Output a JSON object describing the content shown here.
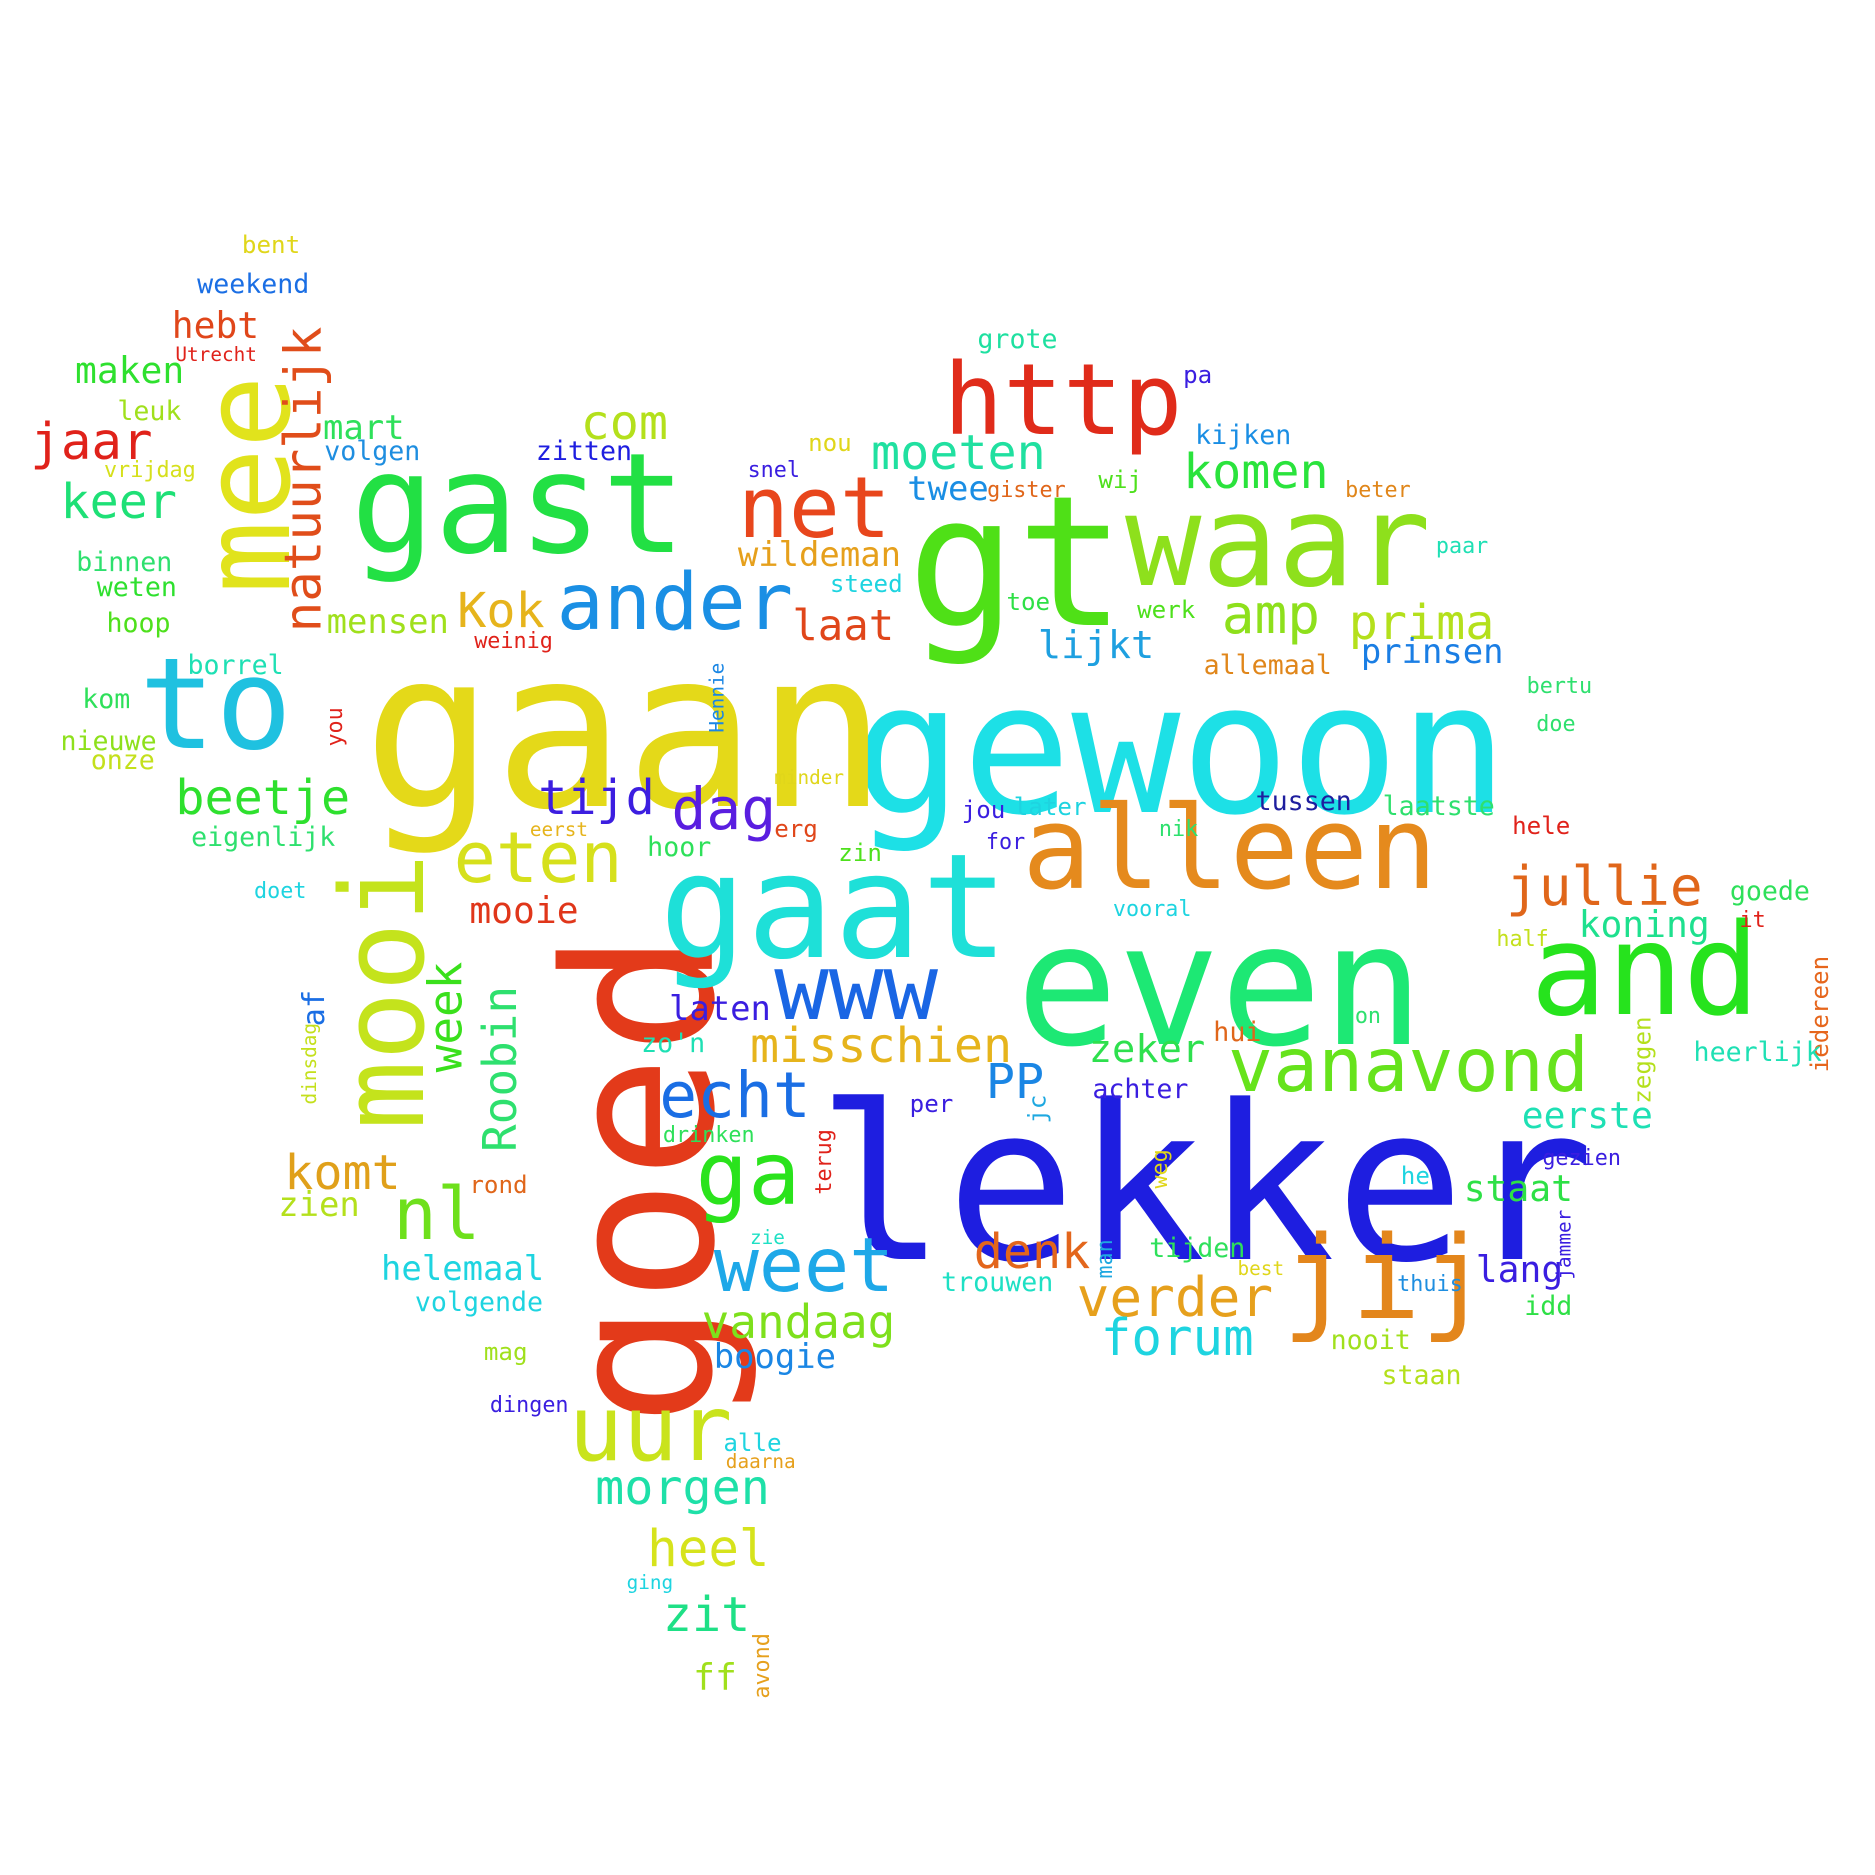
{
  "words": [
    {
      "text": "lekker",
      "color": "#1e1ee0"
    },
    {
      "text": "gewoon",
      "color": "#1de0e6"
    },
    {
      "text": "gaan",
      "color": "#e4d919"
    },
    {
      "text": "gt",
      "color": "#4fe017"
    },
    {
      "text": "goed",
      "color": "#e33a1a"
    },
    {
      "text": "even",
      "color": "#1de874"
    },
    {
      "text": "gaat",
      "color": "#1ee0d8"
    },
    {
      "text": "waar",
      "color": "#8ee01c"
    },
    {
      "text": "gast",
      "color": "#22e044"
    },
    {
      "text": "alleen",
      "color": "#e58a1d"
    },
    {
      "text": "and",
      "color": "#26e31d"
    },
    {
      "text": "to",
      "color": "#1fc1e0"
    },
    {
      "text": "mee",
      "color": "#e1e31c"
    },
    {
      "text": "mooi",
      "color": "#c4e31c"
    },
    {
      "text": "http",
      "color": "#e02b1a"
    },
    {
      "text": "www",
      "color": "#1a66e4"
    },
    {
      "text": "jij",
      "color": "#e3861c"
    },
    {
      "text": "uur",
      "color": "#c9e31c"
    },
    {
      "text": "ander",
      "color": "#1a8fe4"
    },
    {
      "text": "net",
      "color": "#e8461c"
    },
    {
      "text": "vanavond",
      "color": "#66e31c"
    },
    {
      "text": "weet",
      "color": "#1ea8e8"
    },
    {
      "text": "eten",
      "color": "#d6e01c"
    },
    {
      "text": "ga",
      "color": "#2ae31c"
    },
    {
      "text": "natuurlijk",
      "color": "#e04d1a"
    },
    {
      "text": "nl",
      "color": "#6ee01c"
    },
    {
      "text": "jullie",
      "color": "#e0661a"
    },
    {
      "text": "echt",
      "color": "#1a6ee4"
    },
    {
      "text": "verder",
      "color": "#e6a01c"
    },
    {
      "text": "misschien",
      "color": "#e6b41c"
    },
    {
      "text": "forum",
      "color": "#1ed4e0"
    },
    {
      "text": "Roobin",
      "color": "#2ee06e"
    },
    {
      "text": "dag",
      "color": "#5a1ee0"
    },
    {
      "text": "moeten",
      "color": "#20e0a0"
    },
    {
      "text": "beetje",
      "color": "#2ee02e"
    },
    {
      "text": "komen",
      "color": "#2ae33c"
    },
    {
      "text": "amp",
      "color": "#8ee01c"
    },
    {
      "text": "morgen",
      "color": "#1ee0a8"
    },
    {
      "text": "prima",
      "color": "#b4e01c"
    },
    {
      "text": "tijd",
      "color": "#3c1ee0"
    },
    {
      "text": "denk",
      "color": "#e3661c"
    },
    {
      "text": "jaar",
      "color": "#e0221a"
    },
    {
      "text": "week",
      "color": "#3ae01c"
    },
    {
      "text": "vandaag",
      "color": "#7ee01c"
    },
    {
      "text": "com",
      "color": "#b4e01c"
    },
    {
      "text": "keer",
      "color": "#1ee076"
    },
    {
      "text": "Kok",
      "color": "#e6b41c"
    },
    {
      "text": "komt",
      "color": "#e0a01a"
    },
    {
      "text": "heel",
      "color": "#d6e31c"
    },
    {
      "text": "zit",
      "color": "#1ee086"
    },
    {
      "text": "laat",
      "color": "#e0461a"
    },
    {
      "text": "PP",
      "color": "#1a86e4"
    },
    {
      "text": "koning",
      "color": "#1ee08e"
    },
    {
      "text": "wildeman",
      "color": "#e6a01c"
    },
    {
      "text": "lijkt",
      "color": "#1ea0e0"
    },
    {
      "text": "mooie",
      "color": "#e0361a"
    },
    {
      "text": "zeker",
      "color": "#2ee04e"
    },
    {
      "text": "eerste",
      "color": "#1ee0b4"
    },
    {
      "text": "maken",
      "color": "#2ee02e"
    },
    {
      "text": "helemaal",
      "color": "#1ed4e0"
    },
    {
      "text": "boogie",
      "color": "#1a86e4"
    },
    {
      "text": "mensen",
      "color": "#a0e01c"
    },
    {
      "text": "prinsen",
      "color": "#1a7ee4"
    },
    {
      "text": "laten",
      "color": "#3a1ee0"
    },
    {
      "text": "twee",
      "color": "#1a8ee4"
    },
    {
      "text": "staat",
      "color": "#2ee046"
    },
    {
      "text": "hebt",
      "color": "#e0461a"
    },
    {
      "text": "mart",
      "color": "#2ee05a"
    },
    {
      "text": "lang",
      "color": "#3a1ee0"
    },
    {
      "text": "zien",
      "color": "#b4e01c"
    },
    {
      "text": "ff",
      "color": "#a0e01c"
    },
    {
      "text": "af",
      "color": "#1a6ee4"
    },
    {
      "text": "tussen",
      "color": "#1e1e9e"
    },
    {
      "text": "zitten",
      "color": "#1e1ee0"
    },
    {
      "text": "volgen",
      "color": "#1e8ee0"
    },
    {
      "text": "kijken",
      "color": "#1a8ee4"
    },
    {
      "text": "grote",
      "color": "#1ee0a0"
    },
    {
      "text": "hui",
      "color": "#e0661a"
    },
    {
      "text": "iedereen",
      "color": "#e6661c"
    },
    {
      "text": "trouwen",
      "color": "#1ee0c4"
    },
    {
      "text": "zeggen",
      "color": "#b4e01c"
    },
    {
      "text": "tijden",
      "color": "#2ee05a"
    },
    {
      "text": "nooit",
      "color": "#a0e01c"
    },
    {
      "text": "eigenlijk",
      "color": "#2ee06e"
    },
    {
      "text": "volgende",
      "color": "#1ed4e0"
    },
    {
      "text": "drinken",
      "color": "#2ee05a"
    },
    {
      "text": "weekend",
      "color": "#1a6ee4"
    },
    {
      "text": "heerlijk",
      "color": "#1ee0b4"
    },
    {
      "text": "goede",
      "color": "#2ee05a"
    },
    {
      "text": "allemaal",
      "color": "#e0861a"
    },
    {
      "text": "laatste",
      "color": "#2ee06e"
    },
    {
      "text": "idd",
      "color": "#2ee046"
    },
    {
      "text": "staan",
      "color": "#b4e01c"
    },
    {
      "text": "achter",
      "color": "#3a1ee0"
    },
    {
      "text": "weten",
      "color": "#2ee02e"
    },
    {
      "text": "binnen",
      "color": "#2ee06e"
    },
    {
      "text": "borrel",
      "color": "#1ee0b4"
    },
    {
      "text": "hoop",
      "color": "#4ee01c"
    },
    {
      "text": "nieuwe",
      "color": "#8ee01c"
    },
    {
      "text": "onze",
      "color": "#c4e01c"
    },
    {
      "text": "kom",
      "color": "#2ee05a"
    },
    {
      "text": "leuk",
      "color": "#a0e01c"
    },
    {
      "text": "vrijdag",
      "color": "#d6e01c"
    },
    {
      "text": "Utrecht",
      "color": "#e0221a"
    },
    {
      "text": "bent",
      "color": "#e0d61a"
    },
    {
      "text": "you",
      "color": "#e0221a"
    },
    {
      "text": "dinsdag",
      "color": "#c4e01c"
    },
    {
      "text": "doet",
      "color": "#1ed4e0"
    },
    {
      "text": "hoor",
      "color": "#2ee05a"
    },
    {
      "text": "eerst",
      "color": "#e6b41c"
    },
    {
      "text": "erg",
      "color": "#e0461a"
    },
    {
      "text": "zin",
      "color": "#4ee01c"
    },
    {
      "text": "zo'n",
      "color": "#1ee0b4"
    },
    {
      "text": "minder",
      "color": "#e0d61a"
    },
    {
      "text": "Hennie",
      "color": "#1a86e4"
    },
    {
      "text": "weinig",
      "color": "#e0221a"
    },
    {
      "text": "snel",
      "color": "#3a1ee0"
    },
    {
      "text": "nou",
      "color": "#e0d61a"
    },
    {
      "text": "steed",
      "color": "#1ed4e0"
    },
    {
      "text": "toe",
      "color": "#2ee046"
    },
    {
      "text": "werk",
      "color": "#4ee01c"
    },
    {
      "text": "wij",
      "color": "#4ee01c"
    },
    {
      "text": "gister",
      "color": "#e0661a"
    },
    {
      "text": "pa",
      "color": "#3a1ee0"
    },
    {
      "text": "beter",
      "color": "#e0861a"
    },
    {
      "text": "paar",
      "color": "#1ee0b4"
    },
    {
      "text": "bertu",
      "color": "#2ee06e"
    },
    {
      "text": "doe",
      "color": "#2ee06e"
    },
    {
      "text": "hele",
      "color": "#e0221a"
    },
    {
      "text": "it",
      "color": "#e0221a"
    },
    {
      "text": "half",
      "color": "#c4e01c"
    },
    {
      "text": "on",
      "color": "#2ee06e"
    },
    {
      "text": "gezien",
      "color": "#3a1ee0"
    },
    {
      "text": "jammer",
      "color": "#3a1ee0"
    },
    {
      "text": "thuis",
      "color": "#1e8ee0"
    },
    {
      "text": "he",
      "color": "#1ed4e0"
    },
    {
      "text": "best",
      "color": "#e0d61a"
    },
    {
      "text": "man",
      "color": "#1ea8e0"
    },
    {
      "text": "weg",
      "color": "#e0d61a"
    },
    {
      "text": "terug",
      "color": "#e0221a"
    },
    {
      "text": "per",
      "color": "#3a1ee0"
    },
    {
      "text": "jc",
      "color": "#1ea8e0"
    },
    {
      "text": "jou",
      "color": "#3a1ee0"
    },
    {
      "text": "for",
      "color": "#3a1ee0"
    },
    {
      "text": "later",
      "color": "#1ed4e0"
    },
    {
      "text": "nik",
      "color": "#2ee06e"
    },
    {
      "text": "vooral",
      "color": "#1ed4e0"
    },
    {
      "text": "rond",
      "color": "#e0661a"
    },
    {
      "text": "zie",
      "color": "#1ee0c4"
    },
    {
      "text": "mag",
      "color": "#a0e01c"
    },
    {
      "text": "dingen",
      "color": "#3a1ee0"
    },
    {
      "text": "alle",
      "color": "#1ed4e0"
    },
    {
      "text": "daarna",
      "color": "#e6a01c"
    },
    {
      "text": "ging",
      "color": "#1ed4e0"
    },
    {
      "text": "avond",
      "color": "#e6a01c"
    }
  ]
}
